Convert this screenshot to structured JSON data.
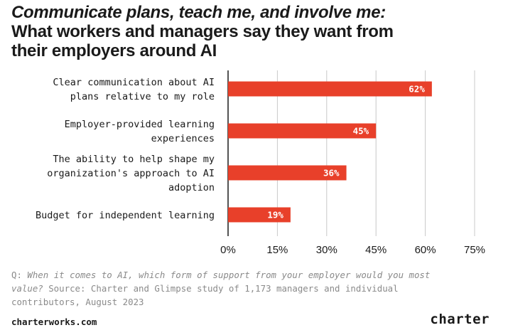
{
  "header": {
    "title_line1": "Communicate plans, teach me, and involve me:",
    "title_line2": "What workers and managers say they want from their employers around AI"
  },
  "chart_data": {
    "type": "bar",
    "orientation": "horizontal",
    "categories": [
      [
        "Clear communication about AI",
        "plans relative to my role"
      ],
      [
        "Employer-provided learning",
        "experiences"
      ],
      [
        "The ability to help shape my",
        "organization's approach to AI",
        "adoption"
      ],
      [
        "Budget for independent learning"
      ]
    ],
    "values": [
      62,
      45,
      36,
      19
    ],
    "value_labels": [
      "62%",
      "45%",
      "36%",
      "19%"
    ],
    "xlim": [
      0,
      75
    ],
    "xticks": [
      "0%",
      "15%",
      "30%",
      "45%",
      "60%",
      "75%"
    ],
    "grid": true,
    "bar_color": "#e8402a",
    "grid_color": "#c8c8c8"
  },
  "footnote": {
    "q_prefix": "Q: ",
    "question": "When it comes to AI, which form of support from your employer would you most value?",
    "source": " Source: Charter and Glimpse study of 1,173 managers and individual contributors, August 2023"
  },
  "footer": {
    "url": "charterworks.com",
    "brand": "charter"
  }
}
